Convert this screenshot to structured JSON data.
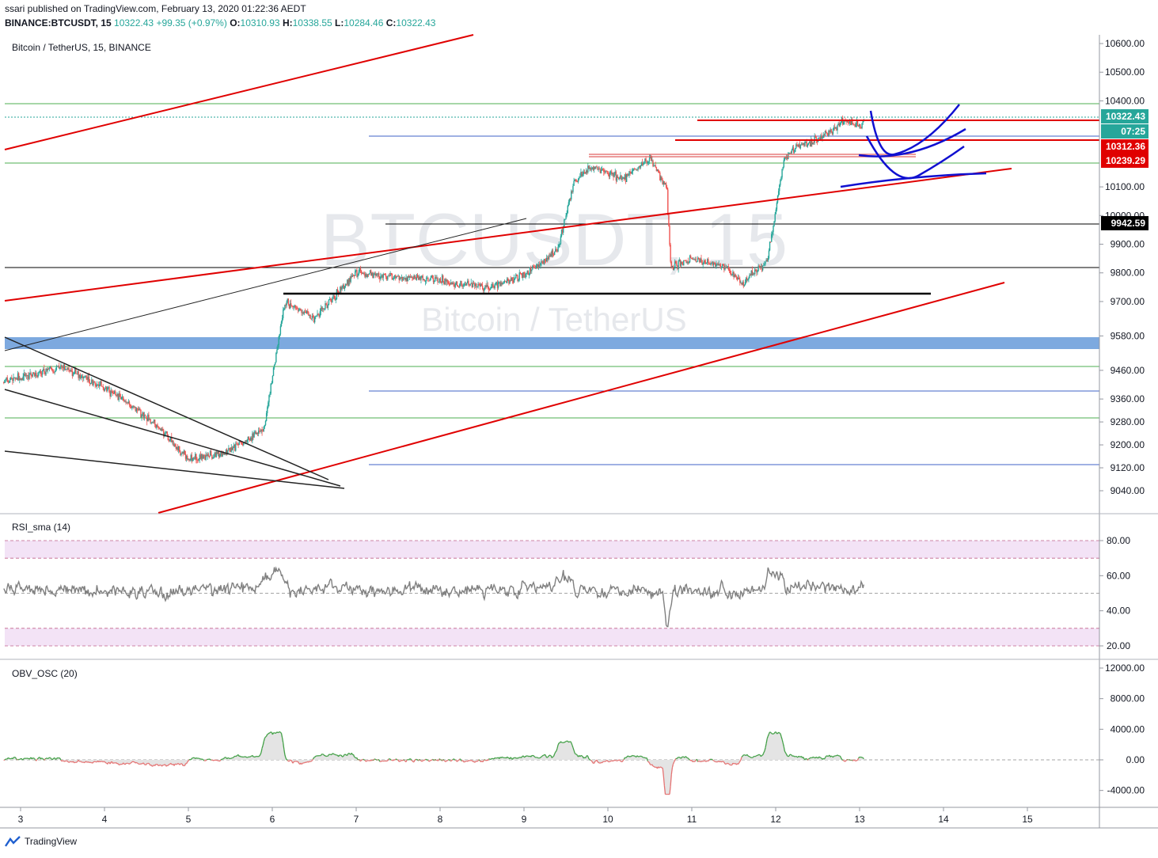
{
  "header": {
    "line1": "ssari published on TradingView.com, February 13, 2020 01:22:36 AEDT",
    "symbol": "BINANCE:BTCUSDT, 15",
    "last": "10322.43",
    "change": "+99.35 (+0.97%)",
    "open_label": "O:",
    "open": "10310.93",
    "high_label": "H:",
    "high": "10338.55",
    "low_label": "L:",
    "low": "10284.46",
    "close_label": "C:",
    "close": "10322.43"
  },
  "panes": {
    "main_title": "Bitcoin / TetherUS, 15, BINANCE",
    "rsi_title": "RSI_sma (14)",
    "obv_title": "OBV_OSC (20)"
  },
  "watermark": {
    "symbol": "BTCUSDT, 15",
    "name": "Bitcoin / TetherUS"
  },
  "footer": {
    "brand": "TradingView"
  },
  "colors": {
    "up": "#26a69a",
    "down": "#ef5350",
    "red_line": "#e00000",
    "blue_line": "#0000cc",
    "rsi": "#808080",
    "band_blue": "#6fa0db"
  },
  "chart_data": [
    {
      "type": "candlestick",
      "title": "Bitcoin / TetherUS, 15, BINANCE",
      "x_ticks": [
        "3",
        "4",
        "5",
        "6",
        "7",
        "8",
        "9",
        "10",
        "11",
        "12",
        "13",
        "14",
        "15"
      ],
      "y_ticks": [
        "10600.00",
        "10500.00",
        "10400.00",
        "10100.00",
        "10000.00",
        "9900.00",
        "9800.00",
        "9700.00",
        "9580.00",
        "9460.00",
        "9360.00",
        "9280.00",
        "9200.00",
        "9120.00",
        "9040.00"
      ],
      "ylim": [
        8960,
        10660
      ],
      "price_labels": [
        {
          "value": "10322.43",
          "color": "#26a69a"
        },
        {
          "value": "07:25",
          "color": "#26a69a"
        },
        {
          "value": "10312.36",
          "color": "#e00000"
        },
        {
          "value": "10239.29",
          "color": "#e00000"
        },
        {
          "value": "9942.59",
          "color": "#000000"
        }
      ],
      "path_days": [
        2.8,
        3.5,
        4.0,
        4.5,
        5.0,
        5.5,
        5.9,
        6.15,
        6.5,
        7.0,
        7.3,
        7.8,
        8.3,
        8.6,
        9.0,
        9.4,
        9.6,
        9.8,
        10.2,
        10.5,
        10.7,
        10.75,
        11.0,
        11.4,
        11.6,
        11.9,
        12.1,
        12.3,
        12.6,
        12.8,
        13.0,
        13.05
      ],
      "path_prices": [
        9420,
        9470,
        9400,
        9300,
        9150,
        9180,
        9260,
        9700,
        9640,
        9800,
        9790,
        9780,
        9760,
        9750,
        9790,
        9880,
        10120,
        10170,
        10130,
        10200,
        10100,
        9820,
        9850,
        9820,
        9760,
        9840,
        10200,
        10250,
        10280,
        10330,
        10310,
        10322
      ]
    },
    {
      "type": "line",
      "title": "RSI_sma (14)",
      "y_ticks": [
        "80.00",
        "60.00",
        "40.00",
        "20.00"
      ],
      "ylim": [
        15,
        93
      ]
    },
    {
      "type": "area",
      "title": "OBV_OSC (20)",
      "y_ticks": [
        "12000.00",
        "8000.00",
        "4000.00",
        "0.00",
        "-4000.00"
      ],
      "ylim": [
        -6500,
        12500
      ]
    }
  ]
}
